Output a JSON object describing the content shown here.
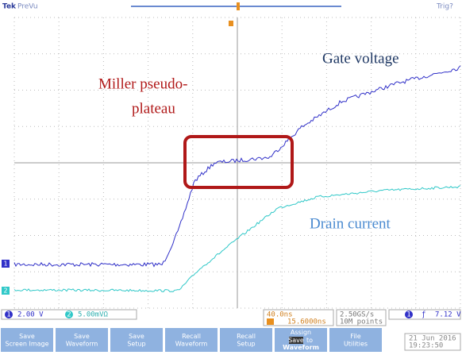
{
  "header": {
    "brand": "Tek",
    "mode": "PreVu",
    "trigger_status": "Trig?"
  },
  "annotations": {
    "gate": "Gate voltage",
    "miller_line1": "Miller pseudo-",
    "miller_line2": "plateau",
    "drain": "Drain current"
  },
  "channels": [
    {
      "number": "1",
      "scale": "2.00 V"
    },
    {
      "number": "2",
      "scale": "5.00mVΩ"
    }
  ],
  "timebase": {
    "scale": "40.0ns",
    "delay": "15.6000ns"
  },
  "acquisition": {
    "rate": "2.50GS/s",
    "length": "10M points"
  },
  "trigger": {
    "channel": "1",
    "slope": "ƒ",
    "level": "7.12 V"
  },
  "menu": [
    {
      "lines": [
        "Save",
        "Screen Image"
      ]
    },
    {
      "lines": [
        "Save",
        "Waveform"
      ]
    },
    {
      "lines": [
        "Save",
        "Setup"
      ]
    },
    {
      "lines": [
        "Recall",
        "Waveform"
      ]
    },
    {
      "lines": [
        "Recall",
        "Setup"
      ]
    },
    {
      "lines": [
        "Assign",
        "to",
        "Waveform"
      ],
      "badge": "Save"
    },
    {
      "lines": [
        "File",
        "Utilities"
      ]
    }
  ],
  "datetime": {
    "date": "21 Jun 2016",
    "time": "19:23:50"
  }
}
